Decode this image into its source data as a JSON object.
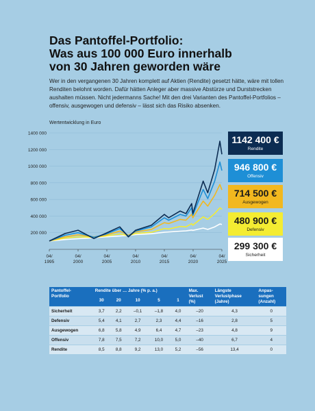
{
  "title_line1": "Das Pantoffel-Portfolio:",
  "title_line2": "Was aus 100 000 Euro innerhalb",
  "title_line3": "von 30 Jahren geworden wäre",
  "intro": "Wer in den vergangenen 30 Jahren komplett auf Aktien (Rendite) gesetzt hätte, wäre mit tollen Renditen belohnt worden. Dafür hätten Anleger aber massive Abstürze und Durststrecken aushalten müssen. Nicht jedermanns Sache! Mit den drei Varianten des Pantoffel-Portfolios – offensiv, ausgewogen und defensiv – lässt sich das Risiko absenken.",
  "chart_label": "Wertentwicklung in Euro",
  "badges": {
    "rendite": {
      "value": "1142 400 €",
      "label": "Rendite"
    },
    "offensiv": {
      "value": "946 800 €",
      "label": "Offensiv"
    },
    "ausgewogen": {
      "value": "714 500 €",
      "label": "Ausgewogen"
    },
    "defensiv": {
      "value": "480 900 €",
      "label": "Defensiv"
    },
    "sicherheit": {
      "value": "299 300 €",
      "label": "Sicherheit"
    }
  },
  "colors": {
    "rendite": "#0c2c52",
    "offensiv": "#1e8fd6",
    "ausgewogen": "#f2b81f",
    "defensiv": "#f4ec32",
    "sicherheit": "#ffffff"
  },
  "chart_data": {
    "type": "line",
    "ylabel": "Wertentwicklung in Euro",
    "ylim": [
      0,
      1400000
    ],
    "y_ticks": [
      200000,
      400000,
      600000,
      800000,
      1000000,
      1200000,
      1400000
    ],
    "y_tick_labels": [
      "200 000",
      "400 000",
      "600 000",
      "800 000",
      "1000 000",
      "1200 000",
      "1400 000"
    ],
    "xlim": [
      1995.25,
      2025.25
    ],
    "x_ticks": [
      1995.25,
      2000.25,
      2005.25,
      2010.25,
      2015.25,
      2020.25,
      2025.25
    ],
    "x_tick_labels": [
      [
        "04/",
        "1995"
      ],
      [
        "04/",
        "2000"
      ],
      [
        "04/",
        "2005"
      ],
      [
        "04/",
        "2010"
      ],
      [
        "04/",
        "2015"
      ],
      [
        "04/",
        "2020"
      ],
      [
        "04/",
        "2025"
      ]
    ],
    "x": [
      1995.25,
      1998.0,
      2000.25,
      2003.0,
      2005.0,
      2007.5,
      2009.0,
      2010.25,
      2013.0,
      2015.25,
      2016.0,
      2018.0,
      2019.0,
      2020.0,
      2020.2,
      2022.0,
      2022.8,
      2024.0,
      2024.9,
      2025.25
    ],
    "series": [
      {
        "name": "Rendite",
        "color": "#0c2c52",
        "values": [
          100000,
          190000,
          230000,
          130000,
          190000,
          270000,
          150000,
          230000,
          290000,
          420000,
          380000,
          460000,
          430000,
          550000,
          430000,
          820000,
          680000,
          960000,
          1300000,
          1142400
        ]
      },
      {
        "name": "Offensiv",
        "color": "#1e8fd6",
        "values": [
          100000,
          170000,
          200000,
          145000,
          180000,
          250000,
          160000,
          220000,
          270000,
          380000,
          350000,
          420000,
          400000,
          500000,
          410000,
          720000,
          610000,
          820000,
          1050000,
          946800
        ]
      },
      {
        "name": "Ausgewogen",
        "color": "#f2b81f",
        "values": [
          100000,
          150000,
          175000,
          150000,
          170000,
          220000,
          170000,
          210000,
          240000,
          320000,
          310000,
          360000,
          350000,
          420000,
          380000,
          580000,
          520000,
          650000,
          780000,
          714500
        ]
      },
      {
        "name": "Defensiv",
        "color": "#f4ec32",
        "values": [
          100000,
          135000,
          150000,
          145000,
          160000,
          185000,
          165000,
          190000,
          205000,
          250000,
          245000,
          275000,
          270000,
          310000,
          290000,
          390000,
          360000,
          430000,
          500000,
          480900
        ]
      },
      {
        "name": "Sicherheit",
        "color": "#ffffff",
        "values": [
          100000,
          118000,
          128000,
          140000,
          150000,
          160000,
          168000,
          178000,
          188000,
          205000,
          208000,
          218000,
          222000,
          232000,
          228000,
          255000,
          240000,
          270000,
          305000,
          299300
        ]
      }
    ]
  },
  "table": {
    "col_name": "Pantoffel-Portfolio",
    "col_rendite": "Rendite über … Jahre (% p. a.)",
    "col_verlust": "Max. Verlust (%)",
    "col_verlust_lines": [
      "Max.",
      "Verlust",
      "(%)"
    ],
    "col_phase": "Längste Verlustphase (Jahre)",
    "col_phase_lines": [
      "Längste",
      "Verlustphase",
      "(Jahre)"
    ],
    "col_anpassungen": "Anpassungen (Anzahl)",
    "col_anpassungen_lines": [
      "Anpas-",
      "sungen",
      "(Anzahl)"
    ],
    "col_name_lines": [
      "Pantoffel-",
      "Portfolio"
    ],
    "years": [
      "30",
      "20",
      "10",
      "5",
      "1"
    ],
    "rows": [
      {
        "name": "Sicherheit",
        "r30": "3,7",
        "r20": "2,2",
        "r10": "–0,1",
        "r5": "–1,8",
        "r1": "4,0",
        "verlust": "–20",
        "phase": "4,3",
        "anp": "0"
      },
      {
        "name": "Defensiv",
        "r30": "5,4",
        "r20": "4,1",
        "r10": "2,7",
        "r5": "2,3",
        "r1": "4,4",
        "verlust": "–16",
        "phase": "2,8",
        "anp": "5"
      },
      {
        "name": "Ausgewogen",
        "r30": "6,8",
        "r20": "5,8",
        "r10": "4,9",
        "r5": "6,4",
        "r1": "4,7",
        "verlust": "–23",
        "phase": "4,8",
        "anp": "9"
      },
      {
        "name": "Offensiv",
        "r30": "7,8",
        "r20": "7,5",
        "r10": "7,2",
        "r5": "10,0",
        "r1": "5,0",
        "verlust": "–40",
        "phase": "6,7",
        "anp": "4"
      },
      {
        "name": "Rendite",
        "r30": "8,5",
        "r20": "8,8",
        "r10": "9,2",
        "r5": "13,0",
        "r1": "5,2",
        "verlust": "–56",
        "phase": "13,4",
        "anp": "0"
      }
    ]
  }
}
